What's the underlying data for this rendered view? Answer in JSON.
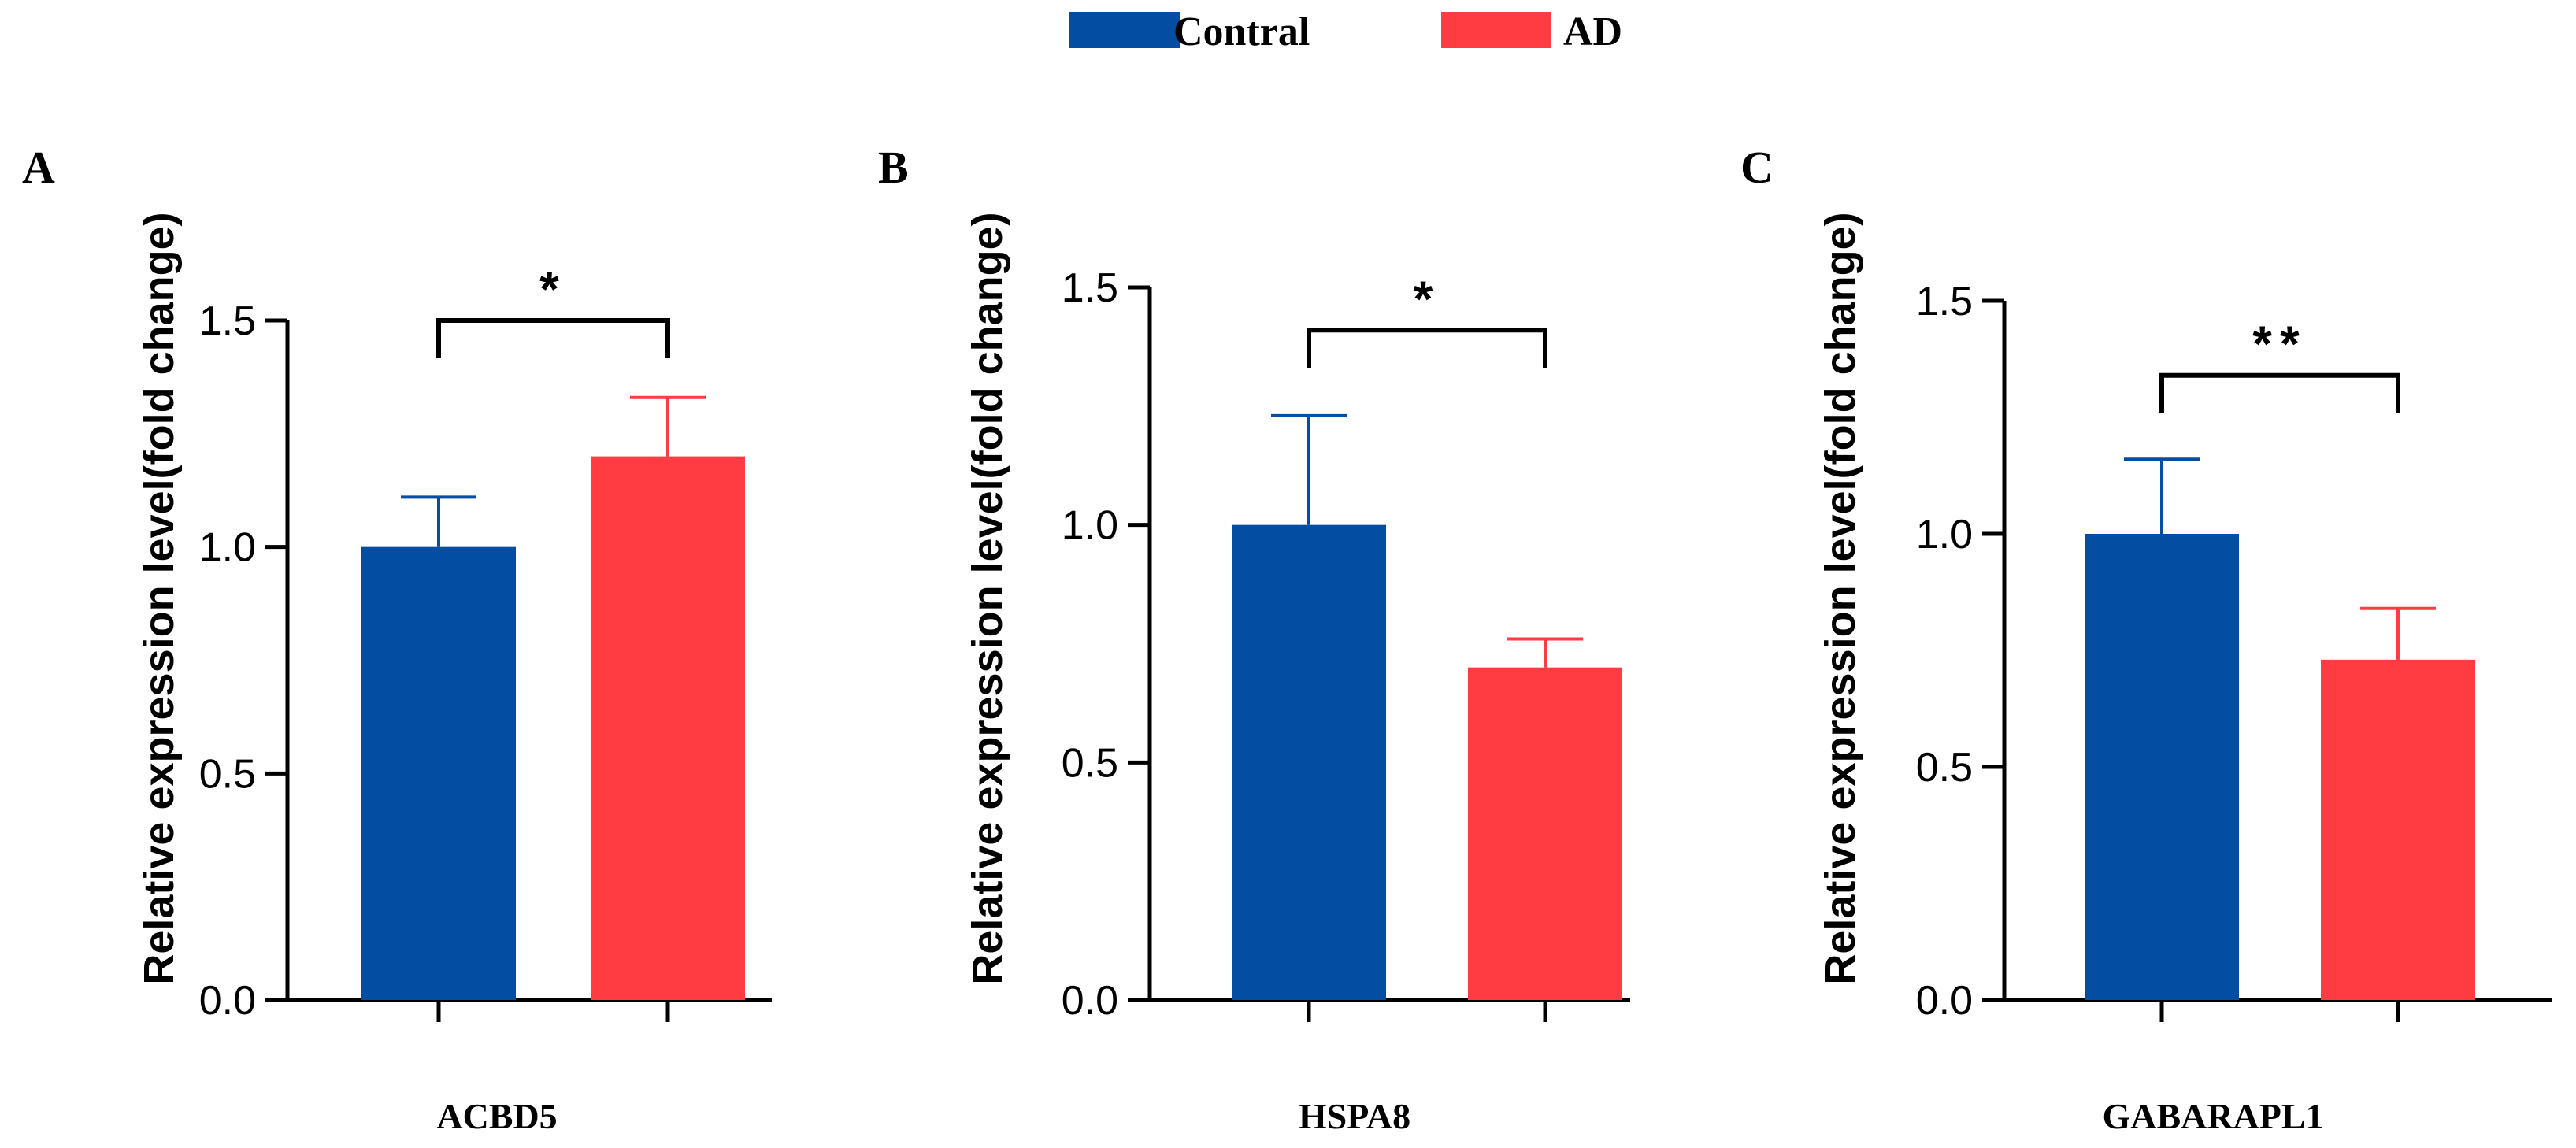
{
  "legend": {
    "items": [
      {
        "label": "Contral",
        "color": "#034EA2"
      },
      {
        "label": "AD",
        "color": "#FF3C42"
      }
    ]
  },
  "chart_data": [
    {
      "type": "bar",
      "panel_label": "A",
      "title": "",
      "xlabel": "ACBD5",
      "ylabel": "Relative expression level(fold change)",
      "ylim": [
        0,
        1.5
      ],
      "yticks": [
        "0.0",
        "0.5",
        "1.0",
        "1.5"
      ],
      "categories": [
        "Contral",
        "AD"
      ],
      "values": [
        1.0,
        1.2
      ],
      "error_upper": [
        0.11,
        0.13
      ],
      "colors": [
        "#034EA2",
        "#FF3C42"
      ],
      "significance": {
        "text": "*",
        "bracket_y": 1.5
      }
    },
    {
      "type": "bar",
      "panel_label": "B",
      "title": "",
      "xlabel": "HSPA8",
      "ylabel": "Relative expression level(fold change)",
      "ylim": [
        0,
        1.5
      ],
      "yticks": [
        "0.0",
        "0.5",
        "1.0",
        "1.5"
      ],
      "categories": [
        "Contral",
        "AD"
      ],
      "values": [
        1.0,
        0.7
      ],
      "error_upper": [
        0.23,
        0.06
      ],
      "colors": [
        "#034EA2",
        "#FF3C42"
      ],
      "significance": {
        "text": "*",
        "bracket_y": 1.41
      }
    },
    {
      "type": "bar",
      "panel_label": "C",
      "title": "",
      "xlabel": "GABARAPL1",
      "ylabel": "Relative expression level(fold change)",
      "ylim": [
        0,
        1.5
      ],
      "yticks": [
        "0.0",
        "0.5",
        "1.0",
        "1.5"
      ],
      "categories": [
        "Contral",
        "AD"
      ],
      "values": [
        1.0,
        0.73
      ],
      "error_upper": [
        0.16,
        0.11
      ],
      "colors": [
        "#034EA2",
        "#FF3C42"
      ],
      "significance": {
        "text": "**",
        "bracket_y": 1.34
      }
    }
  ]
}
